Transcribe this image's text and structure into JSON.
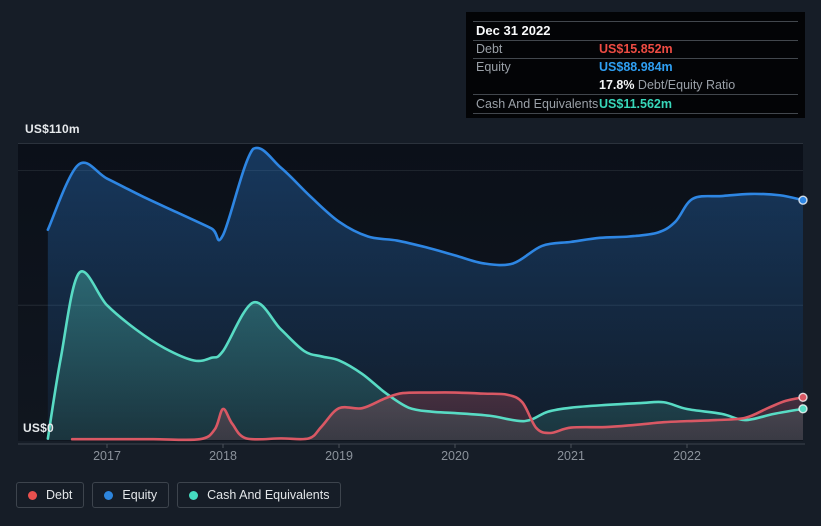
{
  "tooltip": {
    "date": "Dec 31 2022",
    "debt_label": "Debt",
    "debt_value": "US$15.852m",
    "equity_label": "Equity",
    "equity_value": "US$88.984m",
    "ratio_value": "17.8%",
    "ratio_label": " Debt/Equity Ratio",
    "cash_label": "Cash And Equivalents",
    "cash_value": "US$11.562m"
  },
  "colors": {
    "debt": "#ee4c43",
    "equity": "#2f9ff2",
    "cash": "#38d7ba"
  },
  "axis": {
    "y_top_label": "US$110m",
    "y_zero_label": "US$0"
  },
  "legend": [
    {
      "key": "debt",
      "label": "Debt",
      "color": "#e8504e"
    },
    {
      "key": "equity",
      "label": "Equity",
      "color": "#2d85dd"
    },
    {
      "key": "cash",
      "label": "Cash And Equivalents",
      "color": "#45dcc0"
    }
  ],
  "chart_data": {
    "type": "area",
    "title": "Debt / Equity / Cash history",
    "units": "US$m",
    "xlim": [
      2016.45,
      2023.02
    ],
    "ylim": [
      0,
      110
    ],
    "x_ticks": [
      2017,
      2018,
      2019,
      2020,
      2021,
      2022
    ],
    "y_gridlines_m": [
      110,
      100,
      50
    ],
    "legend_position": "bottom-left",
    "series": [
      {
        "name": "Equity",
        "key": "equity",
        "color": "#2e86e3",
        "points": [
          [
            2016.49,
            78
          ],
          [
            2016.75,
            102
          ],
          [
            2017.0,
            97
          ],
          [
            2017.3,
            90.5
          ],
          [
            2017.6,
            84.5
          ],
          [
            2017.9,
            78.5
          ],
          [
            2018.0,
            76
          ],
          [
            2018.26,
            108
          ],
          [
            2018.5,
            101
          ],
          [
            2018.75,
            90.5
          ],
          [
            2019.0,
            81
          ],
          [
            2019.25,
            75.5
          ],
          [
            2019.5,
            74
          ],
          [
            2019.75,
            71.5
          ],
          [
            2020.0,
            68.5
          ],
          [
            2020.25,
            65.5
          ],
          [
            2020.5,
            65.5
          ],
          [
            2020.75,
            72
          ],
          [
            2021.0,
            73.5
          ],
          [
            2021.25,
            75
          ],
          [
            2021.5,
            75.5
          ],
          [
            2021.75,
            77
          ],
          [
            2021.9,
            81
          ],
          [
            2022.05,
            89.5
          ],
          [
            2022.3,
            90.5
          ],
          [
            2022.55,
            91.3
          ],
          [
            2022.8,
            90.8
          ],
          [
            2023.0,
            88.984
          ]
        ]
      },
      {
        "name": "Cash And Equivalents",
        "key": "cash",
        "color": "#58dbc4",
        "points": [
          [
            2016.49,
            0.5
          ],
          [
            2016.6,
            30
          ],
          [
            2016.76,
            62
          ],
          [
            2017.0,
            50
          ],
          [
            2017.25,
            41
          ],
          [
            2017.5,
            34
          ],
          [
            2017.75,
            29.5
          ],
          [
            2017.9,
            30.5
          ],
          [
            2018.0,
            33
          ],
          [
            2018.26,
            51
          ],
          [
            2018.5,
            41
          ],
          [
            2018.7,
            33
          ],
          [
            2018.85,
            31
          ],
          [
            2019.0,
            29.5
          ],
          [
            2019.2,
            24.5
          ],
          [
            2019.4,
            17.5
          ],
          [
            2019.6,
            12
          ],
          [
            2019.8,
            10.5
          ],
          [
            2020.0,
            10
          ],
          [
            2020.3,
            9
          ],
          [
            2020.6,
            7
          ],
          [
            2020.8,
            10.5
          ],
          [
            2021.0,
            12
          ],
          [
            2021.3,
            13
          ],
          [
            2021.6,
            13.7
          ],
          [
            2021.8,
            14
          ],
          [
            2022.0,
            11.5
          ],
          [
            2022.3,
            9.7
          ],
          [
            2022.5,
            7.4
          ],
          [
            2022.75,
            9.7
          ],
          [
            2023.0,
            11.562
          ]
        ]
      },
      {
        "name": "Debt",
        "key": "debt",
        "color": "#d95864",
        "points": [
          [
            2016.7,
            0.3
          ],
          [
            2017.0,
            0.3
          ],
          [
            2017.4,
            0.3
          ],
          [
            2017.8,
            0.3
          ],
          [
            2017.93,
            4
          ],
          [
            2018.0,
            11.5
          ],
          [
            2018.08,
            6
          ],
          [
            2018.2,
            0.6
          ],
          [
            2018.5,
            0.6
          ],
          [
            2018.74,
            0.6
          ],
          [
            2018.85,
            5
          ],
          [
            2019.0,
            11.8
          ],
          [
            2019.2,
            11.8
          ],
          [
            2019.4,
            15.5
          ],
          [
            2019.55,
            17.4
          ],
          [
            2019.8,
            17.6
          ],
          [
            2020.0,
            17.6
          ],
          [
            2020.25,
            17.2
          ],
          [
            2020.45,
            16.8
          ],
          [
            2020.58,
            14
          ],
          [
            2020.7,
            4.5
          ],
          [
            2020.82,
            2.6
          ],
          [
            2021.0,
            4.6
          ],
          [
            2021.3,
            4.8
          ],
          [
            2021.55,
            5.6
          ],
          [
            2021.8,
            6.6
          ],
          [
            2022.0,
            7
          ],
          [
            2022.25,
            7.4
          ],
          [
            2022.5,
            8.2
          ],
          [
            2022.7,
            11.9
          ],
          [
            2022.85,
            14.5
          ],
          [
            2023.0,
            15.852
          ]
        ]
      }
    ]
  }
}
